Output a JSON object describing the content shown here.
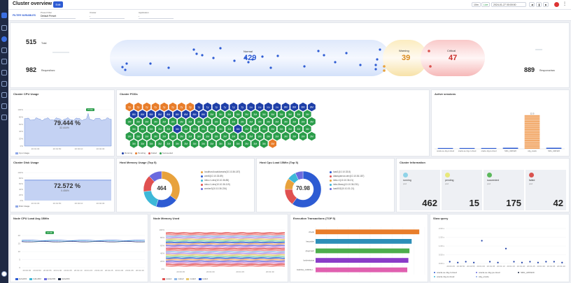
{
  "app": {
    "title": "Cluster overview",
    "edit_label": "Edit"
  },
  "topbar": {
    "range_label": "10m",
    "live_label": "Live",
    "datetime": "2024-01-27 00:00:00"
  },
  "filters": {
    "heading": "FILTER VARIABLES",
    "preset": {
      "label": "Preset Filter",
      "value": "Default Preset"
    },
    "cluster": {
      "label": "Cluster",
      "value": "-"
    },
    "application": {
      "label": "Application",
      "value": "-"
    }
  },
  "flow": {
    "total_value": "515",
    "total_label": "Total",
    "request_value": "982",
    "request_label": "Request/sec",
    "normal_label": "Normal",
    "normal_value": "429",
    "warning_label": "Warning",
    "warning_value": "39",
    "critical_label": "Critical",
    "critical_value": "47",
    "response_value": "889",
    "response_label": "Response/sec"
  },
  "cpu_usage": {
    "title": "Cluster CPU Usage",
    "value": "79.444 %",
    "delta": "32.444%",
    "badge": "77.84",
    "legend": "Cpu Usage",
    "ticks": [
      "100%",
      "80%",
      "60%",
      "40%",
      "20%",
      "0%"
    ],
    "times": [
      "20:01:30",
      "20:01:50",
      "20:02:10",
      "20:02:30"
    ]
  },
  "pods": {
    "title": "Cluster PODs",
    "rows": [
      [
        "2y",
        "2y",
        "2y",
        "2y",
        "2y",
        "2y",
        "2y",
        "2y",
        "1y",
        "1y",
        "1y",
        "1y",
        "1y",
        "1y",
        "10d",
        "10d",
        "10d",
        "10d",
        "8M",
        "8M",
        "8M",
        "8M"
      ],
      [
        "8M",
        "8M",
        "8M",
        "8M",
        "8M",
        "8M",
        "8M",
        "8M",
        "8M",
        "3M",
        "3M",
        "3M",
        "3M",
        "3M",
        "3M",
        "3M",
        "3M",
        "3M",
        "3M",
        "3M",
        "3M"
      ],
      [
        "3M",
        "3M",
        "3M",
        "3M",
        "3M",
        "3M",
        "3M",
        "3M",
        "3M",
        "3M",
        "3M",
        "3M",
        "3M",
        "3M",
        "3M",
        "3M",
        "3M",
        "3M",
        "3M",
        "3M",
        "3M",
        "3M"
      ],
      [
        "3M",
        "3M",
        "3M",
        "3M",
        "3M",
        "3M",
        "3M",
        "3M",
        "3M",
        "3M",
        "3M",
        "3M",
        "3M",
        "3M",
        "3M",
        "3M",
        "3M",
        "3M",
        "3M",
        "3M",
        "3M"
      ],
      [
        "3M",
        "3M",
        "3M",
        "3M",
        "3M",
        "3M",
        "3M",
        "3M",
        "3M",
        "3M",
        "3M",
        "3M",
        "3M",
        "3M",
        "3M",
        "3M",
        "3M",
        "3M",
        "3M",
        "3M",
        "3M",
        "3M"
      ],
      [
        "3M",
        "3M",
        "3M",
        "3M",
        "3M",
        "3M",
        "3M",
        "3M",
        "3M",
        "3M",
        "3M",
        "3M",
        "3M",
        "3M",
        "3M",
        "3M",
        "3M"
      ]
    ],
    "legend": [
      "Running",
      "Pending",
      "Failed",
      "Succeeded"
    ]
  },
  "sessions": {
    "title": "Active sessions",
    "peak": "12.5",
    "bars": [
      {
        "name": "oracle-se-11g-4.cloud",
        "value": 0.3
      },
      {
        "name": "oracle-se-11g-m.cloud",
        "value": 0.3
      },
      {
        "name": "oracle-11g-ts.cloud",
        "value": 0.3
      },
      {
        "name": "SRG_AW1920",
        "value": 0.4
      },
      {
        "name": "cdg_oracle",
        "value": 12.5
      },
      {
        "name": "SRG_AW1920",
        "value": 0.4
      }
    ],
    "legend": [
      "oracle-se-11g-p...cloud",
      "oracle-11g-ts.cloud",
      "cdg_oracle",
      "SRG_AW1920"
    ]
  },
  "disk": {
    "title": "Cluster Disk Usage",
    "value": "72.572 %",
    "delta": "0.456%",
    "legend": "Disk Usage",
    "ticks": [
      "100%",
      "80%",
      "60%",
      "40%",
      "20%",
      "0%"
    ],
    "times": [
      "20:01:30",
      "20:01:50",
      "20:02:10",
      "20:02:30"
    ]
  },
  "host_mem": {
    "title": "Host Memory Usage (Top 5)",
    "center": "464",
    "slices": [
      {
        "name": "localhost.localdomain(10.10.36.187)",
        "value": 35,
        "color": "#e8a23c"
      },
      {
        "name": "cent6(10.10.33.89)",
        "value": 20,
        "color": "#2d5bd3"
      },
      {
        "name": "infra-r1-dev(10.10.36.85)",
        "value": 18,
        "color": "#3db8d8"
      },
      {
        "name": "infra-r1-dev(10.10.36.119)",
        "value": 15,
        "color": "#e05050"
      },
      {
        "name": "worker3(10.10.36.234)",
        "value": 12,
        "color": "#6a6adf"
      }
    ]
  },
  "host_cpu": {
    "title": "Host Cpu Load 15Min (Top 5)",
    "center": "70.98",
    "slices": [
      {
        "name": "load1(10.10.33.8)",
        "value": 60,
        "color": "#2d5bd3"
      },
      {
        "name": "datasparrow-dev(10.10.36.187)",
        "value": 15,
        "color": "#e05050"
      },
      {
        "name": "infra-r1(10.10.36.21)",
        "value": 10,
        "color": "#e8a23c"
      },
      {
        "name": "infra-library(10.10.36.231)",
        "value": 8,
        "color": "#3db8d8"
      },
      {
        "name": "load002(10.10.31.21)",
        "value": 7,
        "color": "#6a6adf"
      }
    ]
  },
  "cluster_info": {
    "title": "Cluster Information",
    "cards": [
      {
        "label": "running",
        "unit": "pod",
        "value": "462",
        "color": "#8fd3e8"
      },
      {
        "label": "pending",
        "unit": "pod",
        "value": "15",
        "color": "#e8e87a"
      },
      {
        "label": "succeeded",
        "unit": "pod",
        "value": "175",
        "color": "#5cb85c"
      },
      {
        "label": "failed",
        "unit": "pod",
        "value": "42",
        "color": "#d9534f"
      }
    ]
  },
  "node_cpu": {
    "title": "Node CPU Load Avg 15Min",
    "badge": "17.66",
    "ticks": [
      "20",
      "15",
      "10",
      "5",
      "0"
    ],
    "times": [
      "20:00:45",
      "20:00:50",
      "20:00:55",
      "20:01:00",
      "20:01:05",
      "20:01:10",
      "20:01:15",
      "20:01:20",
      "20:01:25",
      "20:01:30",
      "20:01:35",
      "20:01:40"
    ],
    "legend": [
      "kube001",
      "kube002",
      "kube003",
      "kube004"
    ]
  },
  "node_mem": {
    "title": "Node Memory Used",
    "ticks": [
      "100%",
      "80%",
      "60%",
      "40%",
      "20%",
      "0%"
    ],
    "times": [
      "20:00:45",
      "20:01:00",
      "20:01:15",
      "20:01:30"
    ],
    "legend": [
      "node1",
      "node2",
      "node3",
      "node4"
    ]
  },
  "exec_tx": {
    "title": "Execution Transactions (TOP 5)",
    "bars": [
      {
        "name": "check",
        "value": 0.95,
        "color": "#e87d2a"
      },
      {
        "name": "/recorder",
        "value": 0.88,
        "color": "#2d8fb8"
      },
      {
        "name": "/payment",
        "value": 0.86,
        "color": "#4cae4c"
      },
      {
        "name": "/orderstatus",
        "value": 0.85,
        "color": "#8a3cc8"
      },
      {
        "name": "KAFKA_CONSU...",
        "value": 0.84,
        "color": "#e060b0"
      }
    ]
  },
  "slow_query": {
    "title": "Slow query",
    "ticks": [
      "2.00 s",
      "1.50 s",
      "1.00 s",
      "0.50 s",
      "0.00 s"
    ],
    "points": [
      0.1,
      0.05,
      0.1,
      0.05,
      1.3,
      0.1,
      0.05,
      0.85,
      0.1,
      0.05,
      0.1,
      0.05,
      0.1,
      0.1,
      0.05
    ],
    "times": [
      "20:00:45",
      "20:00:50",
      "20:00:55",
      "20:01:00",
      "20:01:05",
      "20:01:10",
      "20:01:15",
      "20:01:20",
      "20:01:25",
      "20:01:30",
      "20:01:35",
      "20:01:40"
    ],
    "legend": [
      "oracle-se-11g-4.cloud",
      "oracle-se-11g-pe.cloud",
      "SRG_AW1920",
      "oracle-11g-ts.cloud",
      "cdg_oracle"
    ]
  },
  "colors": {
    "accent": "#2d5bd3",
    "running": "#1e3fa8",
    "pending": "#e87d2a",
    "failed": "#d9534f",
    "succeeded": "#2a9d4a"
  }
}
